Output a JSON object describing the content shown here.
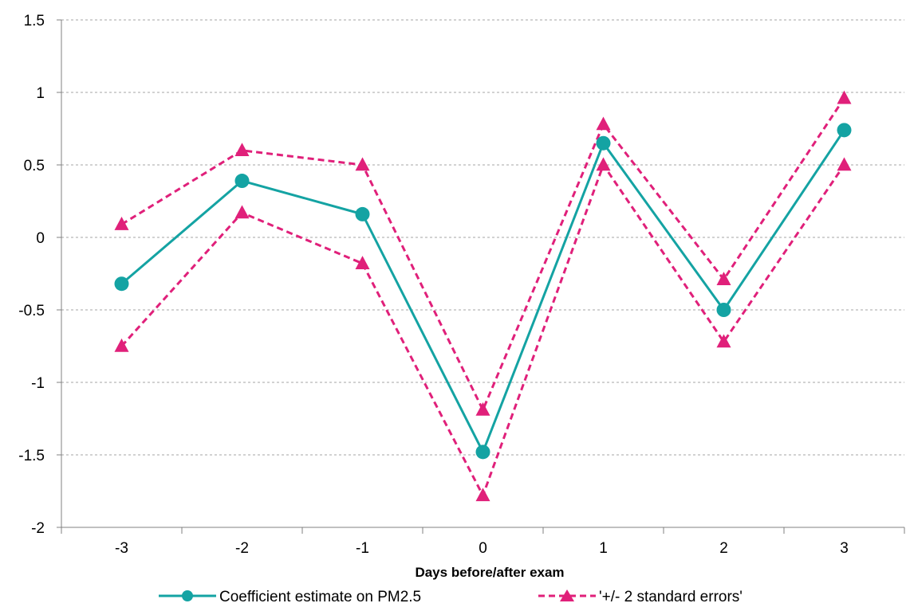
{
  "chart_data": {
    "type": "line",
    "categories": [
      "-3",
      "-2",
      "-1",
      "0",
      "1",
      "2",
      "3"
    ],
    "xlabel": "Days before/after exam",
    "ylabel": "",
    "ylim": [
      -2,
      1.5
    ],
    "yticks": [
      "1.5",
      "1",
      "0.5",
      "0",
      "-0.5",
      "-1",
      "-1.5",
      "-2"
    ],
    "ytick_values": [
      1.5,
      1,
      0.5,
      0,
      -0.5,
      -1,
      -1.5,
      -2
    ],
    "grid": "horizontal dashed",
    "legend_position": "bottom",
    "series": [
      {
        "name": "Coefficient estimate on PM2.5",
        "values": [
          -0.32,
          0.39,
          0.16,
          -1.48,
          0.65,
          -0.5,
          0.74
        ],
        "color": "#14a3a3",
        "marker": "circle",
        "line": "solid"
      },
      {
        "name": "'+/- 2 standard errors'",
        "values": [
          0.09,
          0.6,
          0.5,
          -1.19,
          0.78,
          -0.29,
          0.96
        ],
        "color": "#e0207a",
        "marker": "triangle",
        "line": "dashed"
      },
      {
        "name": "",
        "values": [
          -0.75,
          0.17,
          -0.18,
          -1.78,
          0.5,
          -0.72,
          0.5
        ],
        "color": "#e0207a",
        "marker": "triangle",
        "line": "dashed"
      }
    ]
  }
}
